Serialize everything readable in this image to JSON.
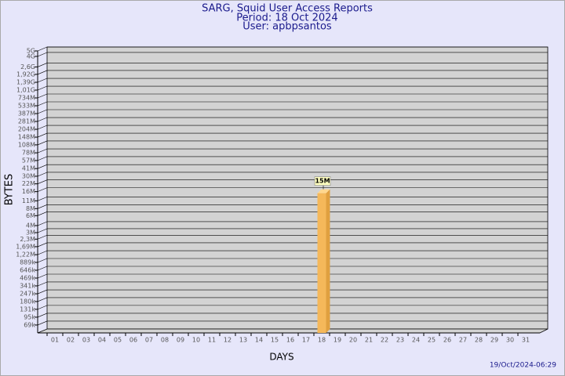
{
  "chart_data": {
    "type": "bar3d",
    "title": "SARG, Squid User Access Reports",
    "subtitle": "Period: 18 Oct 2024",
    "user": "User: apbpsantos",
    "xlabel": "DAYS",
    "ylabel": "BYTES",
    "footer": "19/Oct/2024-06:29",
    "categories": [
      "01",
      "02",
      "03",
      "04",
      "05",
      "06",
      "07",
      "08",
      "09",
      "10",
      "11",
      "12",
      "13",
      "14",
      "15",
      "16",
      "17",
      "18",
      "19",
      "20",
      "21",
      "22",
      "23",
      "24",
      "25",
      "26",
      "27",
      "28",
      "29",
      "30",
      "31"
    ],
    "values": [
      null,
      null,
      null,
      null,
      null,
      null,
      null,
      null,
      null,
      null,
      null,
      null,
      null,
      null,
      null,
      null,
      null,
      15000000,
      null,
      null,
      null,
      null,
      null,
      null,
      null,
      null,
      null,
      null,
      null,
      null,
      null
    ],
    "value_labels": [
      null,
      null,
      null,
      null,
      null,
      null,
      null,
      null,
      null,
      null,
      null,
      null,
      null,
      null,
      null,
      null,
      null,
      "15M",
      null,
      null,
      null,
      null,
      null,
      null,
      null,
      null,
      null,
      null,
      null,
      null,
      null
    ],
    "color": "#f5b85a",
    "log_scale": true,
    "grid": true,
    "ylim": [
      50000,
      5000000000
    ],
    "yticks": [
      {
        "value": 69000,
        "label": "69k"
      },
      {
        "value": 95000,
        "label": "95k"
      },
      {
        "value": 131000,
        "label": "131k"
      },
      {
        "value": 180000,
        "label": "180k"
      },
      {
        "value": 247000,
        "label": "247k"
      },
      {
        "value": 341000,
        "label": "341k"
      },
      {
        "value": 469000,
        "label": "469k"
      },
      {
        "value": 646000,
        "label": "646k"
      },
      {
        "value": 889000,
        "label": "889k"
      },
      {
        "value": 1220000,
        "label": "1,22M"
      },
      {
        "value": 1690000,
        "label": "1,69M"
      },
      {
        "value": 2300000,
        "label": "2,3M"
      },
      {
        "value": 3000000,
        "label": "3M"
      },
      {
        "value": 4000000,
        "label": "4M"
      },
      {
        "value": 6000000,
        "label": "6M"
      },
      {
        "value": 8000000,
        "label": "8M"
      },
      {
        "value": 11000000,
        "label": "11M"
      },
      {
        "value": 16000000,
        "label": "16M"
      },
      {
        "value": 22000000,
        "label": "22M"
      },
      {
        "value": 30000000,
        "label": "30M"
      },
      {
        "value": 41000000,
        "label": "41M"
      },
      {
        "value": 57000000,
        "label": "57M"
      },
      {
        "value": 78000000,
        "label": "78M"
      },
      {
        "value": 108000000,
        "label": "108M"
      },
      {
        "value": 148000000,
        "label": "148M"
      },
      {
        "value": 204000000,
        "label": "204M"
      },
      {
        "value": 281000000,
        "label": "281M"
      },
      {
        "value": 387000000,
        "label": "387M"
      },
      {
        "value": 533000000,
        "label": "533M"
      },
      {
        "value": 734000000,
        "label": "734M"
      },
      {
        "value": 1010000000,
        "label": "1,01G"
      },
      {
        "value": 1390000000,
        "label": "1,39G"
      },
      {
        "value": 1920000000,
        "label": "1,92G"
      },
      {
        "value": 2600000000,
        "label": "2,6G"
      },
      {
        "value": 4000000000,
        "label": "4G"
      },
      {
        "value": 5000000000,
        "label": "5G"
      }
    ]
  }
}
